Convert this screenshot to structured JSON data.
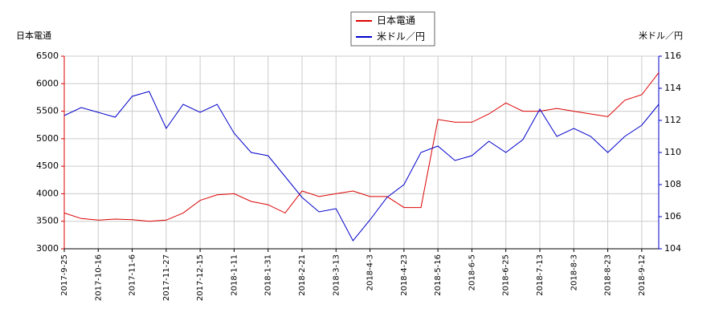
{
  "chart_data": {
    "type": "line",
    "ylabel": "日本電通",
    "y2label": "米ドル／円",
    "categories": [
      "2017-9-25",
      null,
      "2017-10-16",
      null,
      "2017-11-6",
      null,
      "2017-11-27",
      null,
      "2017-12-15",
      null,
      "2018-1-11",
      null,
      "2018-1-31",
      null,
      "2018-2-21",
      null,
      "2018-3-13",
      null,
      "2018-4-3",
      null,
      "2018-4-23",
      null,
      "2018-5-16",
      null,
      "2018-6-5",
      null,
      "2018-6-25",
      null,
      "2018-7-13",
      null,
      "2018-8-3",
      null,
      "2018-8-23",
      null,
      "2018-9-12",
      null
    ],
    "series": [
      {
        "name": "日本電通",
        "color": "#dd0000",
        "axis": "y",
        "values": [
          3650,
          3550,
          3520,
          3540,
          3530,
          3500,
          3520,
          3650,
          3880,
          3980,
          4000,
          3860,
          3800,
          3650,
          4050,
          3950,
          4000,
          4050,
          3950,
          3950,
          3750,
          3750,
          5350,
          5300,
          5300,
          5450,
          5650,
          5500,
          5500,
          5550,
          5500,
          5450,
          5400,
          5700,
          5800,
          6200
        ]
      },
      {
        "name": "米ドル／円",
        "color": "#0000cc",
        "axis": "y2",
        "values": [
          112.3,
          112.8,
          112.5,
          112.2,
          113.5,
          113.8,
          111.5,
          113.0,
          112.5,
          113.0,
          111.2,
          110.0,
          109.8,
          108.5,
          107.2,
          106.3,
          106.5,
          104.5,
          105.8,
          107.2,
          108.0,
          110.0,
          110.4,
          109.5,
          109.8,
          110.7,
          110.0,
          110.8,
          112.7,
          111.0,
          111.5,
          111.0,
          110.0,
          111.0,
          111.7,
          113.0
        ]
      }
    ],
    "ylim": [
      3000,
      6500
    ],
    "yticks": [
      3000,
      3500,
      4000,
      4500,
      5000,
      5500,
      6000,
      6500
    ],
    "y2lim": [
      104,
      116
    ],
    "y2ticks": [
      104,
      106,
      108,
      110,
      112,
      114,
      116
    ],
    "grid": true,
    "legend": "top"
  }
}
